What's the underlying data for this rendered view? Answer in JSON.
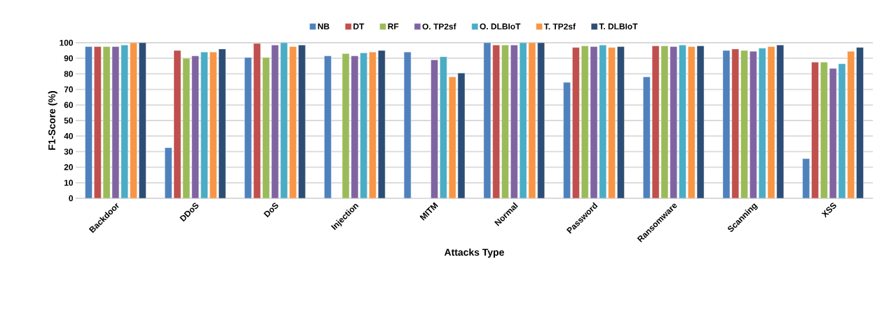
{
  "chart_data": {
    "type": "bar",
    "xlabel": "Attacks Type",
    "ylabel": "F1-Score (%)",
    "categories": [
      "Backdoor",
      "DDoS",
      "DoS",
      "Injection",
      "MITM",
      "Normal",
      "Password",
      "Ransomware",
      "Scanning",
      "XSS"
    ],
    "series": [
      {
        "name": "NB",
        "color": "#4f81bd",
        "values": [
          97.5,
          32.5,
          90.5,
          91.5,
          94,
          100,
          74.5,
          78,
          95,
          25.5
        ]
      },
      {
        "name": "DT",
        "color": "#c0504d",
        "values": [
          97.5,
          95,
          99.5,
          0,
          0,
          98.5,
          97,
          98,
          96,
          87.5
        ]
      },
      {
        "name": "RF",
        "color": "#9bbb59",
        "values": [
          97.5,
          90,
          90.5,
          93,
          0,
          98.5,
          98,
          98,
          95,
          87.5
        ]
      },
      {
        "name": "O. TP2sf",
        "color": "#8064a2",
        "values": [
          97.5,
          91.5,
          98.5,
          91.5,
          89,
          98.5,
          97.5,
          97.5,
          94.5,
          83.5
        ]
      },
      {
        "name": "O. DLBIoT",
        "color": "#4bacc6",
        "values": [
          98.5,
          94,
          100,
          93.5,
          91,
          100,
          98.5,
          98.5,
          96.5,
          86.5
        ]
      },
      {
        "name": "T. TP2sf",
        "color": "#f79646",
        "values": [
          100,
          94,
          97.5,
          94,
          78,
          100,
          97,
          97.5,
          97.5,
          94.5
        ]
      },
      {
        "name": "T. DLBIoT",
        "color": "#2c4d75",
        "values": [
          100,
          96,
          98.5,
          95,
          80.5,
          100,
          97.5,
          98,
          98.5,
          97
        ]
      }
    ],
    "ylim": [
      0,
      100
    ],
    "yticks": [
      0,
      10,
      20,
      30,
      40,
      50,
      60,
      70,
      80,
      90,
      100
    ],
    "grid": "y",
    "legend": "top"
  }
}
